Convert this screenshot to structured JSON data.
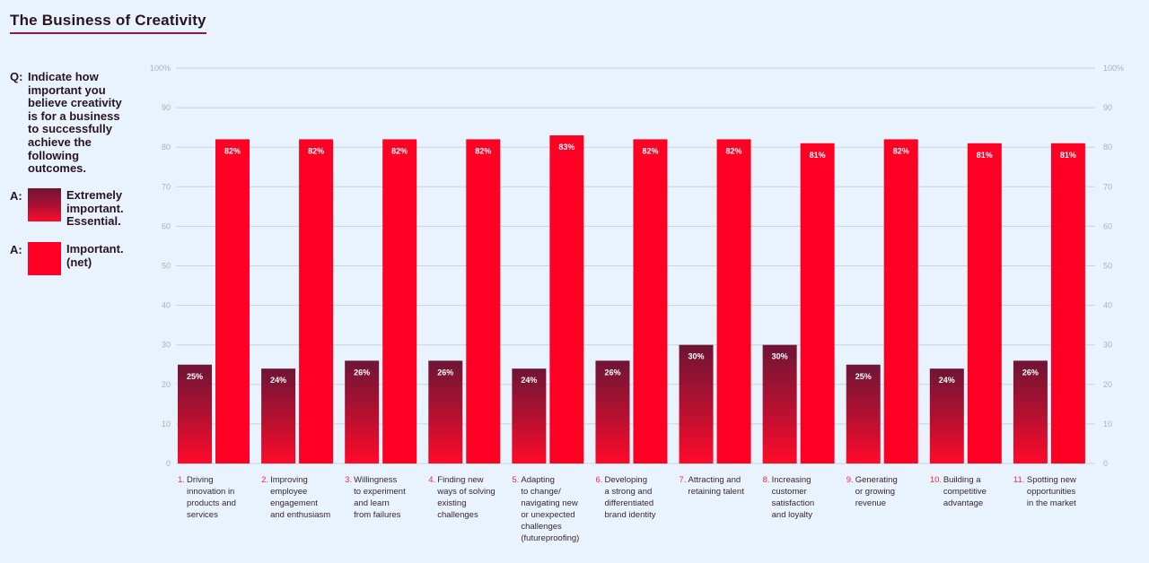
{
  "title": "The Business of Creativity",
  "question": {
    "prefix": "Q:",
    "text": "Indicate how important you believe creativity is for a business to successfully achieve the following outcomes."
  },
  "legend": [
    {
      "prefix": "A:",
      "label": "Extremely important. Essential.",
      "color": "#8a1538"
    },
    {
      "prefix": "A:",
      "label": "Important. (net)",
      "color": "#ff0024"
    }
  ],
  "colors": {
    "dark_top": "#6e1535",
    "dark_bottom": "#ff0a2a",
    "red": "#ff0024",
    "grid": "#cfd8e0"
  },
  "chart_data": {
    "type": "bar",
    "title": "The Business of Creativity",
    "ylim": [
      0,
      100
    ],
    "yticks": [
      "0",
      "10",
      "20",
      "30",
      "40",
      "50",
      "60",
      "70",
      "80",
      "90",
      "100%"
    ],
    "grid": true,
    "categories": [
      {
        "num": "1.",
        "lines": [
          "Driving",
          "innovation in",
          "products and",
          "services"
        ]
      },
      {
        "num": "2.",
        "lines": [
          "Improving",
          "employee",
          "engagement",
          "and enthusiasm"
        ]
      },
      {
        "num": "3.",
        "lines": [
          "Willingness",
          "to experiment",
          "and learn",
          "from failures"
        ]
      },
      {
        "num": "4.",
        "lines": [
          "Finding new",
          "ways of solving",
          "existing",
          "challenges"
        ]
      },
      {
        "num": "5.",
        "lines": [
          "Adapting",
          "to change/",
          "navigating new",
          "or unexpected",
          "challenges",
          "(futureproofing)"
        ]
      },
      {
        "num": "6.",
        "lines": [
          "Developing",
          "a strong and",
          "differentiated",
          "brand identity"
        ]
      },
      {
        "num": "7.",
        "lines": [
          "Attracting and",
          "retaining talent"
        ]
      },
      {
        "num": "8.",
        "lines": [
          "Increasing",
          "customer",
          "satisfaction",
          "and loyalty"
        ]
      },
      {
        "num": "9.",
        "lines": [
          "Generating",
          "or growing",
          "revenue"
        ]
      },
      {
        "num": "10.",
        "lines": [
          "Building a",
          "competitive",
          "advantage"
        ]
      },
      {
        "num": "11.",
        "lines": [
          "Spotting new",
          "opportunities",
          "in the market"
        ]
      }
    ],
    "series": [
      {
        "name": "Extremely important. Essential.",
        "values": [
          25,
          24,
          26,
          26,
          24,
          26,
          30,
          30,
          25,
          24,
          26
        ],
        "labels": [
          "25%",
          "24%",
          "26%",
          "26%",
          "24%",
          "26%",
          "30%",
          "30%",
          "25%",
          "24%",
          "26%"
        ]
      },
      {
        "name": "Important. (net)",
        "values": [
          82,
          82,
          82,
          82,
          83,
          82,
          82,
          81,
          82,
          81,
          81
        ],
        "labels": [
          "82%",
          "82%",
          "82%",
          "82%",
          "83%",
          "82%",
          "82%",
          "81%",
          "82%",
          "81%",
          "81%"
        ]
      }
    ]
  }
}
